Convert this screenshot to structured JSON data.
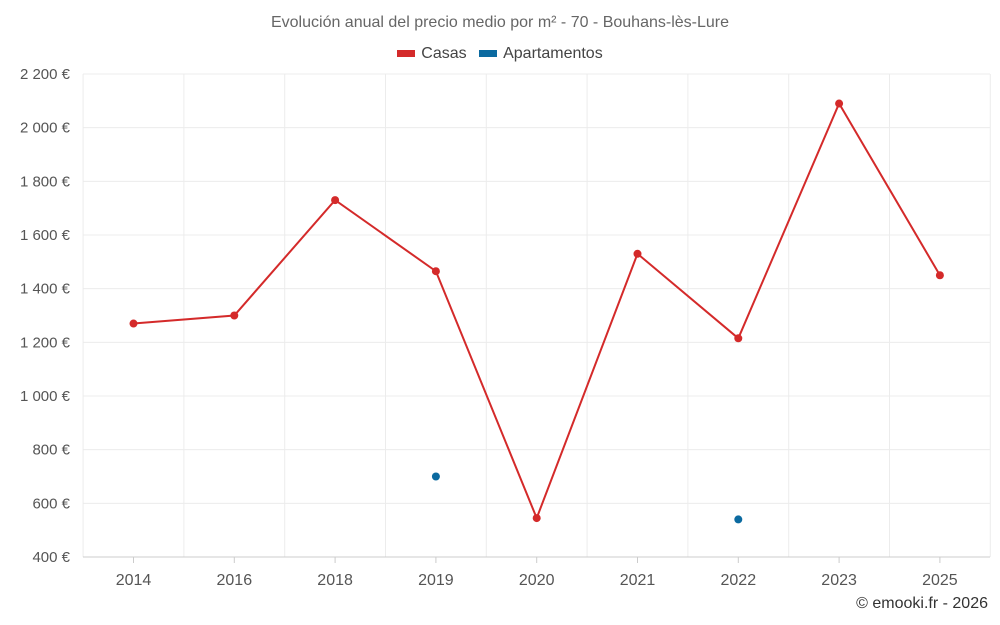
{
  "chart_data": {
    "type": "line",
    "title": "Evolución anual del precio medio por m² - 70 - Bouhans-lès-Lure",
    "categories": [
      "2014",
      "2016",
      "2018",
      "2019",
      "2020",
      "2021",
      "2022",
      "2023",
      "2025"
    ],
    "series": [
      {
        "name": "Casas",
        "color": "#d42a2a",
        "values": [
          1270,
          1300,
          1730,
          1465,
          545,
          1530,
          1215,
          2090,
          1450
        ]
      },
      {
        "name": "Apartamentos",
        "color": "#0b6aa0",
        "values": [
          null,
          null,
          null,
          700,
          null,
          null,
          540,
          null,
          null
        ]
      }
    ],
    "ylim": [
      400,
      2200
    ],
    "yticks": [
      400,
      600,
      800,
      1000,
      1200,
      1400,
      1600,
      1800,
      2000,
      2200
    ],
    "ytick_labels": [
      "400 €",
      "600 €",
      "800 €",
      "1 000 €",
      "1 200 €",
      "1 400 €",
      "1 600 €",
      "1 800 €",
      "2 000 €",
      "2 200 €"
    ],
    "xlabel": "",
    "ylabel": "",
    "grid": true,
    "legend_position": "top-center"
  },
  "copyright": "© emooki.fr - 2026"
}
